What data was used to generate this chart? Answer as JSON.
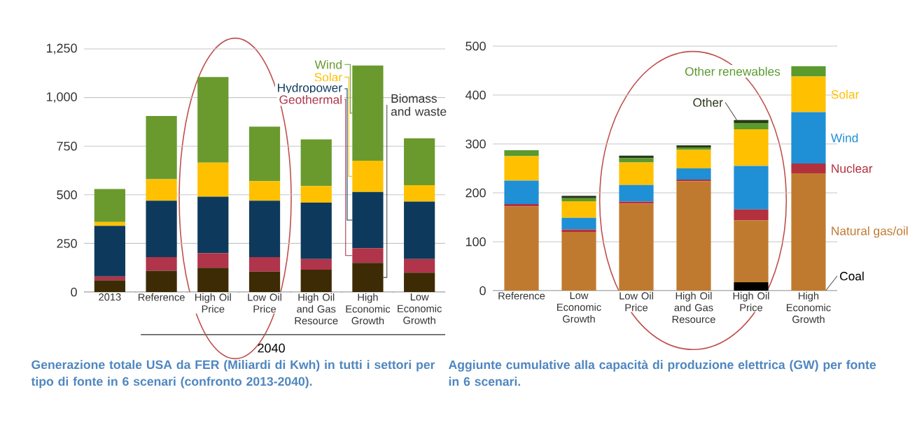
{
  "chart_data": [
    {
      "type": "bar",
      "stacked": true,
      "grid": "y",
      "categories": [
        "2013",
        "Reference",
        "High Oil Price",
        "Low Oil Price",
        "High Oil and Gas Resource",
        "High Economic Growth",
        "Low Economic Growth"
      ],
      "series": [
        {
          "name": "Biomass and waste",
          "color": "#3d2b05",
          "values": [
            60,
            110,
            125,
            105,
            115,
            150,
            100
          ]
        },
        {
          "name": "Geothermal",
          "color": "#b0344a",
          "values": [
            20,
            70,
            75,
            75,
            55,
            75,
            70
          ]
        },
        {
          "name": "Hydropower",
          "color": "#0d3a5c",
          "values": [
            260,
            290,
            290,
            290,
            290,
            290,
            295
          ]
        },
        {
          "name": "Solar",
          "color": "#ffc000",
          "values": [
            20,
            110,
            175,
            100,
            85,
            160,
            85
          ]
        },
        {
          "name": "Wind",
          "color": "#6a9a2e",
          "values": [
            170,
            325,
            440,
            280,
            240,
            490,
            240
          ]
        }
      ],
      "ylim": [
        0,
        1250
      ],
      "yticks": [
        0,
        250,
        500,
        750,
        {
          "value": 1000,
          "label": "1,000"
        },
        {
          "value": 1250,
          "label": "1,250"
        }
      ],
      "annotations": [
        "2040",
        "Generazione totale USA da FER (Miliardi di Kwh) in tutti i settori per tipo di fonte in 6 scenari (confronto 2013-2040)."
      ]
    },
    {
      "type": "bar",
      "stacked": true,
      "grid": "y",
      "categories": [
        "Reference",
        "Low Economic Growth",
        "Low Oil Price",
        "High Oil and Gas Resource",
        "High Oil Price",
        "High Economic Growth"
      ],
      "series": [
        {
          "name": "Coal",
          "color": "#000000",
          "values": [
            0,
            0,
            0,
            0,
            17,
            0
          ]
        },
        {
          "name": "Natural gas/oil",
          "color": "#c07a30",
          "values": [
            172,
            120,
            178,
            224,
            127,
            240
          ]
        },
        {
          "name": "Nuclear",
          "color": "#b3303d",
          "values": [
            5,
            5,
            4,
            3,
            22,
            20
          ]
        },
        {
          "name": "Wind",
          "color": "#1f8fd6",
          "values": [
            48,
            24,
            34,
            23,
            89,
            105
          ]
        },
        {
          "name": "Solar",
          "color": "#ffc000",
          "values": [
            50,
            34,
            46,
            38,
            75,
            73
          ]
        },
        {
          "name": "Other renewables",
          "color": "#5a9a2e",
          "values": [
            12,
            6,
            9,
            5,
            13,
            21
          ]
        },
        {
          "name": "Other",
          "color": "#2b3a1a",
          "values": [
            0,
            5,
            5,
            4,
            6,
            0
          ]
        }
      ],
      "ylim": [
        0,
        500
      ],
      "yticks": [
        0,
        100,
        200,
        300,
        400,
        500
      ],
      "annotations": [
        "Aggiunte cumulative alla capacità di produzione elettrica (GW) per fonte in 6 scenari."
      ]
    }
  ]
}
